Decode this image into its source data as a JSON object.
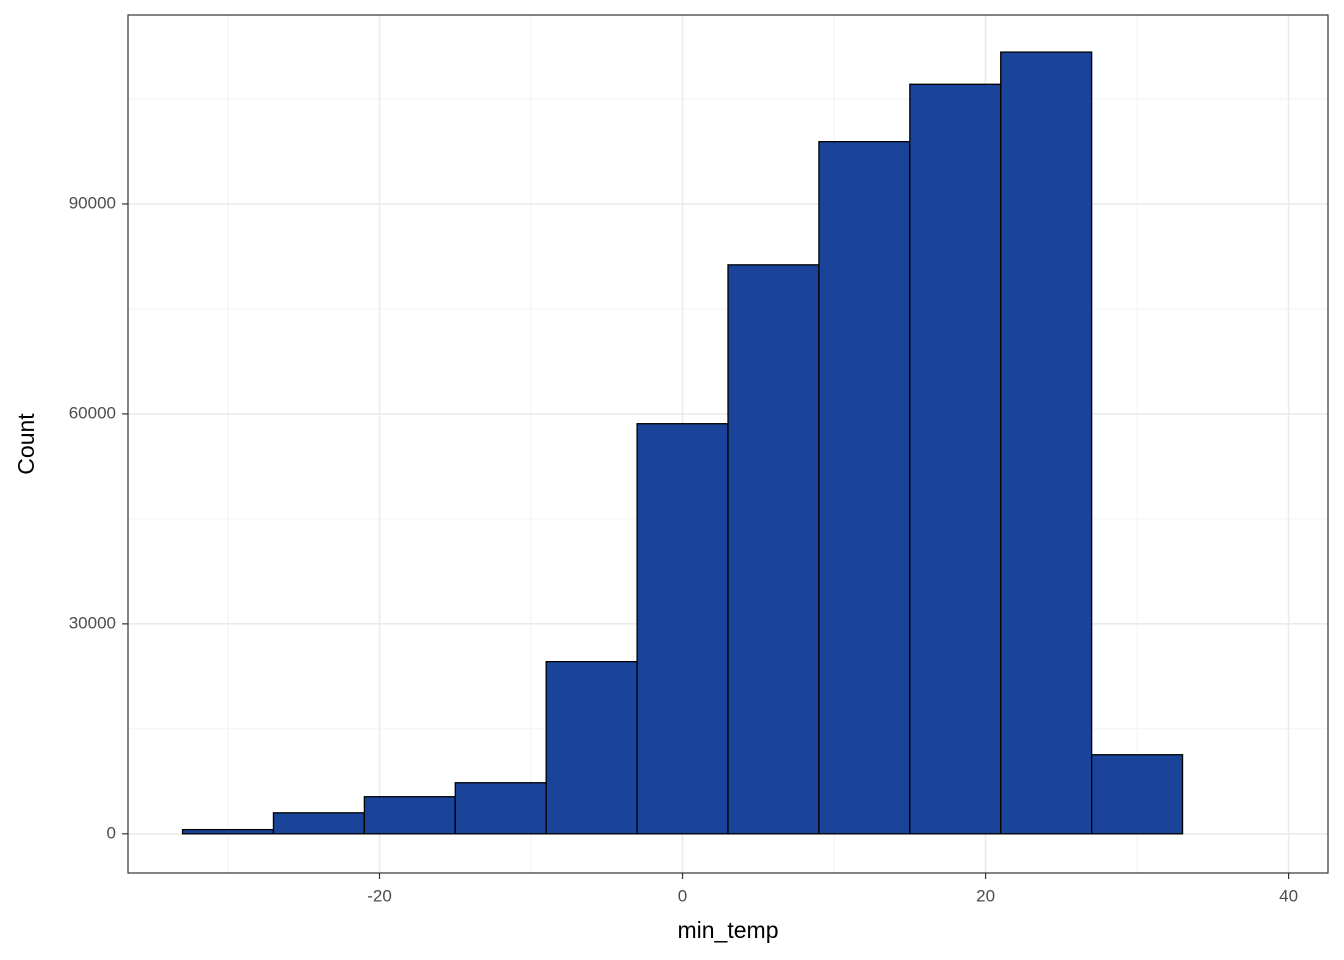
{
  "chart_data": {
    "type": "histogram",
    "x_label": "min_temp",
    "y_label": "Count",
    "bins": [
      -33,
      -27,
      -21,
      -15,
      -9,
      -3,
      3,
      9,
      15,
      21,
      27,
      33,
      39
    ],
    "values": [
      600,
      3000,
      5300,
      7300,
      24600,
      58600,
      81300,
      98900,
      107100,
      111700,
      11300,
      0
    ],
    "color": "#1a4499",
    "xlim": [
      -36.6,
      42.6
    ],
    "ylim": [
      -5600,
      117000
    ],
    "xticks": [
      -20,
      0,
      20,
      40
    ],
    "yticks": [
      0,
      30000,
      60000,
      90000
    ],
    "grid": true
  }
}
